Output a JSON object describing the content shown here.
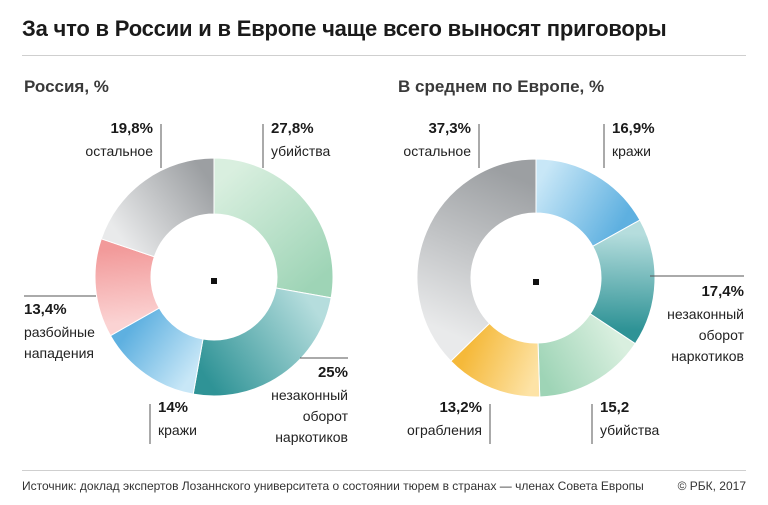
{
  "title": "За что в России и в Европе чаще всего выносят приговоры",
  "footer": {
    "source": "Источник: доклад экспертов Лозаннского университета о состоянии тюрем в странах — членах Совета Европы",
    "copyright": "© РБК, 2017"
  },
  "chart_data": [
    {
      "type": "pie",
      "title": "Россия, %",
      "slices": [
        {
          "value_label": "27,8%",
          "value": 27.8,
          "label": "убийства",
          "colors": [
            "#d9efdf",
            "#9ed4b6"
          ]
        },
        {
          "value_label": "25%",
          "value": 25,
          "label": "незаконный оборот наркотиков",
          "colors": [
            "#b5dddd",
            "#2f9396"
          ]
        },
        {
          "value_label": "14%",
          "value": 14,
          "label": "кражи",
          "colors": [
            "#c8e7f7",
            "#5eb0e0"
          ]
        },
        {
          "value_label": "13,4%",
          "value": 13.4,
          "label": "разбойные нападения",
          "colors": [
            "#fbd3d3",
            "#f29a9a"
          ]
        },
        {
          "value_label": "19,8%",
          "value": 19.8,
          "label": "остальное",
          "colors": [
            "#e9eaeb",
            "#9c9fa2"
          ]
        }
      ]
    },
    {
      "type": "pie",
      "title": "В среднем по Европе, %",
      "slices": [
        {
          "value_label": "16,9%",
          "value": 16.9,
          "label": "кражи",
          "colors": [
            "#c8e7f7",
            "#5eb0e0"
          ]
        },
        {
          "value_label": "17,4%",
          "value": 17.4,
          "label": "незаконный оборот наркотиков",
          "colors": [
            "#b5dddd",
            "#2f9396"
          ]
        },
        {
          "value_label": "15,2",
          "value": 15.2,
          "label": "убийства",
          "colors": [
            "#d9efdf",
            "#9ed4b6"
          ]
        },
        {
          "value_label": "13,2%",
          "value": 13.2,
          "label": "ограбления",
          "colors": [
            "#fde3a6",
            "#f5b93a"
          ]
        },
        {
          "value_label": "37,3%",
          "value": 37.3,
          "label": "остальное",
          "colors": [
            "#e9eaeb",
            "#9c9fa2"
          ]
        }
      ]
    }
  ]
}
